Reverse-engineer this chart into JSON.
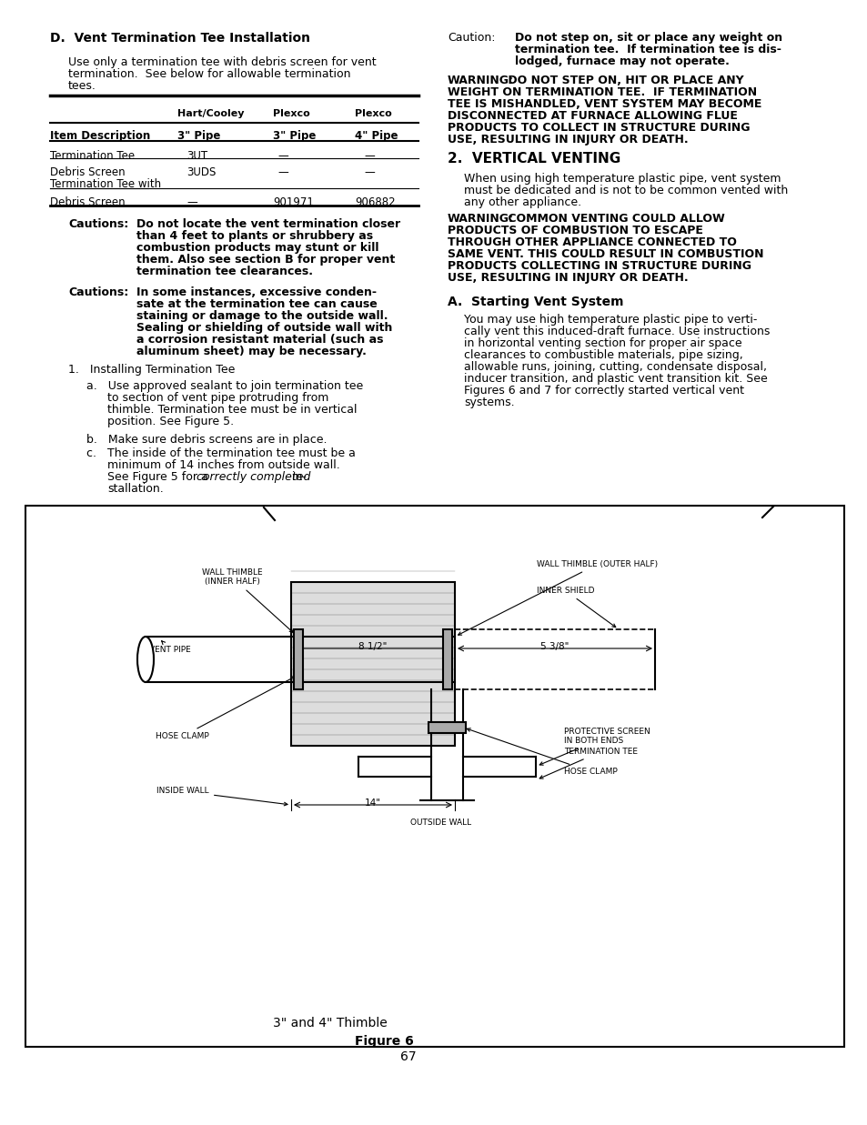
{
  "title_section_d": "D.  Vent Termination Tee Installation",
  "table_col1_header": "Hart/Cooley",
  "table_col2_header": "Plexco",
  "table_col3_header": "Plexco",
  "table_row0": [
    "Item Description",
    "3\" Pipe",
    "3\" Pipe",
    "4\" Pipe"
  ],
  "table_row1": [
    "Termination Tee",
    "3UT",
    "—",
    "—"
  ],
  "table_row2": [
    "Debris Screen",
    "3UDS",
    "—",
    "—"
  ],
  "table_row3a": "Termination Tee with",
  "table_row3b": [
    "Debris Screen",
    "—",
    "901971",
    "906882"
  ],
  "caution1_label": "Cautions:",
  "caution1_lines": [
    "Do not locate the vent termination closer",
    "than 4 feet to plants or shrubbery as",
    "combustion products may stunt or kill",
    "them. Also see section B for proper vent",
    "termination tee clearances."
  ],
  "caution2_label": "Cautions:",
  "caution2_lines": [
    "In some instances, excessive conden-",
    "sate at the termination tee can cause",
    "staining or damage to the outside wall.",
    "Sealing or shielding of outside wall with",
    "a corrosion resistant material (such as",
    "aluminum sheet) may be necessary."
  ],
  "list1_header": "1.   Installing Termination Tee",
  "list_a_lines": [
    "a.   Use approved sealant to join termination tee",
    "to section of vent pipe protruding from",
    "thimble. Termination tee must be in vertical",
    "position. See Figure 5."
  ],
  "list_b": "b.   Make sure debris screens are in place.",
  "list_c_lines": [
    "c.   The inside of the termination tee must be a",
    "minimum of 14 inches from outside wall.",
    "See Figure 5 for a correctly completed in-",
    "stallation."
  ],
  "right_caution_label": "Caution:",
  "right_caution_lines": [
    "Do not step on, sit or place any weight on",
    "termination tee.  If termination tee is dis-",
    "lodged, furnace may not operate."
  ],
  "warning1_label": "WARNING:",
  "warning1_line1": " DO NOT STEP ON, HIT OR PLACE ANY",
  "warning1_lines": [
    "WEIGHT ON TERMINATION TEE.  IF TERMINATION",
    "TEE IS MISHANDLED, VENT SYSTEM MAY BECOME",
    "DISCONNECTED AT FURNACE ALLOWING FLUE",
    "PRODUCTS TO COLLECT IN STRUCTURE DURING",
    "USE, RESULTING IN INJURY OR DEATH."
  ],
  "section2_title": "2.  VERTICAL VENTING",
  "section2_lines": [
    "When using high temperature plastic pipe, vent system",
    "must be dedicated and is not to be common vented with",
    "any other appliance."
  ],
  "warning2_label": "WARNING:",
  "warning2_line1": " COMMON VENTING COULD ALLOW",
  "warning2_lines": [
    "PRODUCTS OF COMBUSTION TO ESCAPE",
    "THROUGH OTHER APPLIANCE CONNECTED TO",
    "SAME VENT. THIS COULD RESULT IN COMBUSTION",
    "PRODUCTS COLLECTING IN STRUCTURE DURING",
    "USE, RESULTING IN INJURY OR DEATH."
  ],
  "sectionA_title": "A.  Starting Vent System",
  "sectionA_lines": [
    "You may use high temperature plastic pipe to verti-",
    "cally vent this induced-draft furnace. Use instructions",
    "in horizontal venting section for proper air space",
    "clearances to combustible materials, pipe sizing,",
    "allowable runs, joining, cutting, condensate disposal,",
    "inducer transition, and plastic vent transition kit. See",
    "Figures 6 and 7 for correctly started vertical vent",
    "systems."
  ],
  "figure_caption": "3\" and 4\" Thimble",
  "figure_label": "Figure 6",
  "page_number": "67",
  "bg_color": "#ffffff"
}
